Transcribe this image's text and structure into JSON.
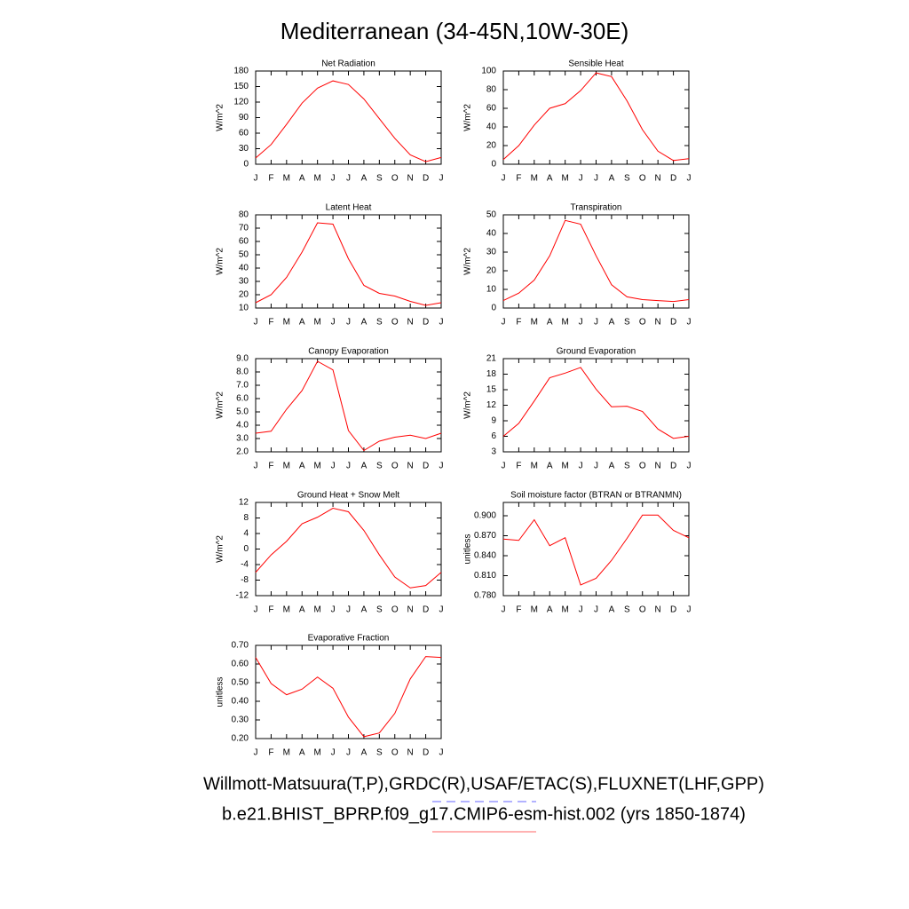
{
  "title": "Mediterranean (34-45N,10W-30E)",
  "chart_data": [
    {
      "type": "line",
      "title": "Net Radiation",
      "ylabel": "W/m^2",
      "color": "#ff0000",
      "categories": [
        "J",
        "F",
        "M",
        "A",
        "M",
        "J",
        "J",
        "A",
        "S",
        "O",
        "N",
        "D",
        "J"
      ],
      "values": [
        12,
        38,
        77,
        118,
        147,
        161,
        154,
        126,
        88,
        50,
        18,
        5,
        13
      ],
      "ylim": [
        0,
        180
      ],
      "yticks": [
        0,
        30,
        60,
        90,
        120,
        150,
        180
      ]
    },
    {
      "type": "line",
      "title": "Sensible Heat",
      "ylabel": "W/m^2",
      "color": "#ff0000",
      "categories": [
        "J",
        "F",
        "M",
        "A",
        "M",
        "J",
        "J",
        "A",
        "S",
        "O",
        "N",
        "D",
        "J"
      ],
      "values": [
        5,
        20,
        42,
        60,
        65,
        79,
        98,
        94,
        68,
        37,
        14,
        4,
        6
      ],
      "ylim": [
        0,
        100
      ],
      "yticks": [
        0,
        20,
        40,
        60,
        80,
        100
      ]
    },
    {
      "type": "line",
      "title": "Latent Heat",
      "ylabel": "W/m^2",
      "color": "#ff0000",
      "categories": [
        "J",
        "F",
        "M",
        "A",
        "M",
        "J",
        "J",
        "A",
        "S",
        "O",
        "N",
        "D",
        "J"
      ],
      "values": [
        14,
        20,
        33,
        52,
        74,
        73,
        47,
        27,
        21,
        19,
        15,
        12,
        14
      ],
      "ylim": [
        10,
        80
      ],
      "yticks": [
        10,
        20,
        30,
        40,
        50,
        60,
        70,
        80
      ]
    },
    {
      "type": "line",
      "title": "Transpiration",
      "ylabel": "W/m^2",
      "color": "#ff0000",
      "categories": [
        "J",
        "F",
        "M",
        "A",
        "M",
        "J",
        "J",
        "A",
        "S",
        "O",
        "N",
        "D",
        "J"
      ],
      "values": [
        4,
        8,
        15,
        28,
        47,
        45,
        28,
        12.5,
        6,
        4.5,
        4,
        3.5,
        4.5
      ],
      "ylim": [
        0,
        50
      ],
      "yticks": [
        0,
        10,
        20,
        30,
        40,
        50
      ]
    },
    {
      "type": "line",
      "title": "Canopy Evaporation",
      "ylabel": "W/m^2",
      "color": "#ff0000",
      "categories": [
        "J",
        "F",
        "M",
        "A",
        "M",
        "J",
        "J",
        "A",
        "S",
        "O",
        "N",
        "D",
        "J"
      ],
      "values": [
        3.4,
        3.55,
        5.2,
        6.6,
        8.8,
        8.15,
        3.6,
        2.1,
        2.8,
        3.1,
        3.25,
        3.0,
        3.4
      ],
      "ylim": [
        2,
        9
      ],
      "yticks": [
        {
          "value": 2,
          "label": "2.0"
        },
        {
          "value": 3,
          "label": "3.0"
        },
        {
          "value": 4,
          "label": "4.0"
        },
        {
          "value": 5,
          "label": "5.0"
        },
        {
          "value": 6,
          "label": "6.0"
        },
        {
          "value": 7,
          "label": "7.0"
        },
        {
          "value": 8,
          "label": "8.0"
        },
        {
          "value": 9,
          "label": "9.0"
        }
      ]
    },
    {
      "type": "line",
      "title": "Ground Evaporation",
      "ylabel": "W/m^2",
      "color": "#ff0000",
      "categories": [
        "J",
        "F",
        "M",
        "A",
        "M",
        "J",
        "J",
        "A",
        "S",
        "O",
        "N",
        "D",
        "J"
      ],
      "values": [
        6,
        8.5,
        12.8,
        17.3,
        18.2,
        19.3,
        15.1,
        11.7,
        11.8,
        10.8,
        7.4,
        5.6,
        6
      ],
      "ylim": [
        3,
        21
      ],
      "yticks": [
        3,
        6,
        9,
        12,
        15,
        18,
        21
      ]
    },
    {
      "type": "line",
      "title": "Ground Heat + Snow Melt",
      "ylabel": "W/m^2",
      "color": "#ff0000",
      "categories": [
        "J",
        "F",
        "M",
        "A",
        "M",
        "J",
        "J",
        "A",
        "S",
        "O",
        "N",
        "D",
        "J"
      ],
      "values": [
        -6,
        -1.5,
        2,
        6.5,
        8.2,
        10.5,
        9.6,
        4.8,
        -1.5,
        -7.2,
        -10,
        -9.4,
        -6
      ],
      "ylim": [
        -12,
        12
      ],
      "yticks": [
        -12,
        -8,
        -4,
        0,
        4,
        8,
        12
      ]
    },
    {
      "type": "line",
      "title": "Soil moisture factor (BTRAN or BTRANMN)",
      "ylabel": "unitless",
      "color": "#ff0000",
      "categories": [
        "J",
        "F",
        "M",
        "A",
        "M",
        "J",
        "J",
        "A",
        "S",
        "O",
        "N",
        "D",
        "J"
      ],
      "values": [
        0.865,
        0.863,
        0.894,
        0.855,
        0.867,
        0.796,
        0.806,
        0.833,
        0.866,
        0.901,
        0.901,
        0.878,
        0.867
      ],
      "ylim": [
        0.78,
        0.92
      ],
      "yticks": [
        {
          "value": 0.78,
          "label": "0.780"
        },
        {
          "value": 0.81,
          "label": "0.810"
        },
        {
          "value": 0.84,
          "label": "0.840"
        },
        {
          "value": 0.87,
          "label": "0.870"
        },
        {
          "value": 0.9,
          "label": "0.900"
        }
      ]
    },
    {
      "type": "line",
      "title": "Evaporative Fraction",
      "ylabel": "unitless",
      "color": "#ff0000",
      "categories": [
        "J",
        "F",
        "M",
        "A",
        "M",
        "J",
        "J",
        "A",
        "S",
        "O",
        "N",
        "D",
        "J"
      ],
      "values": [
        0.635,
        0.495,
        0.435,
        0.465,
        0.53,
        0.47,
        0.315,
        0.21,
        0.23,
        0.335,
        0.52,
        0.64,
        0.635
      ],
      "ylim": [
        0.2,
        0.7
      ],
      "yticks": [
        {
          "value": 0.2,
          "label": "0.20"
        },
        {
          "value": 0.3,
          "label": "0.30"
        },
        {
          "value": 0.4,
          "label": "0.40"
        },
        {
          "value": 0.5,
          "label": "0.50"
        },
        {
          "value": 0.6,
          "label": "0.60"
        },
        {
          "value": 0.7,
          "label": "0.70"
        }
      ]
    }
  ],
  "footer": [
    {
      "text": "Willmott-Matsuura(T,P),GRDC(R),USAF/ETAC(S),FLUXNET(LHF,GPP)",
      "color": "#6666ff",
      "dashed": true
    },
    {
      "text": "b.e21.BHIST_BPRP.f09_g17.CMIP6-esm-hist.002 (yrs 1850-1874)",
      "color": "#ff6666",
      "dashed": false
    }
  ]
}
